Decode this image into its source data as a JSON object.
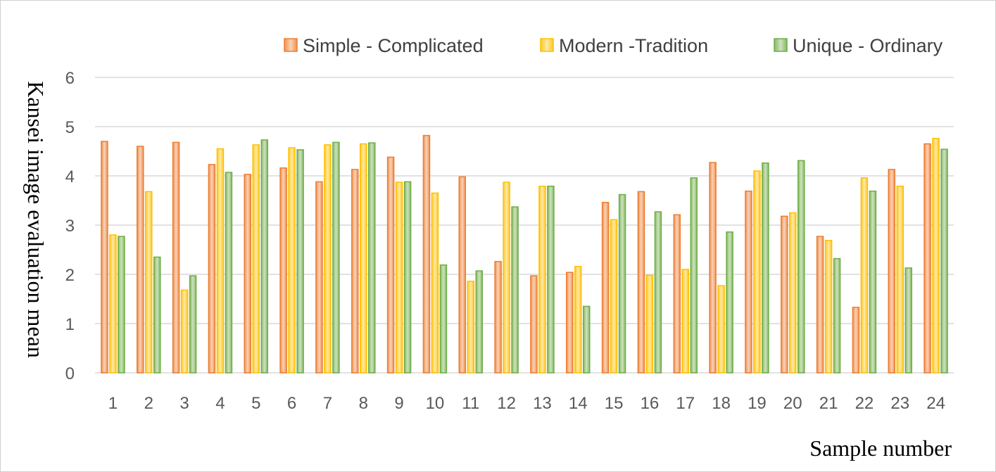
{
  "chart_data": {
    "type": "bar",
    "title": "",
    "xlabel": "Sample number",
    "ylabel": "Kansei image evaluation mean",
    "ylim": [
      0,
      6
    ],
    "yticks": [
      0,
      1,
      2,
      3,
      4,
      5,
      6
    ],
    "grid": true,
    "legend_position": "top-right",
    "categories": [
      "1",
      "2",
      "3",
      "4",
      "5",
      "6",
      "7",
      "8",
      "9",
      "10",
      "11",
      "12",
      "13",
      "14",
      "15",
      "16",
      "17",
      "18",
      "19",
      "20",
      "21",
      "22",
      "23",
      "24"
    ],
    "series": [
      {
        "name": "Simple - Complicated",
        "color": "#ED7D31",
        "values": [
          4.7,
          4.6,
          4.68,
          4.23,
          4.03,
          4.16,
          3.88,
          4.13,
          4.38,
          4.82,
          3.98,
          2.26,
          1.97,
          2.04,
          3.46,
          3.68,
          3.21,
          4.27,
          3.69,
          3.18,
          2.77,
          1.33,
          4.13,
          4.65
        ]
      },
      {
        "name": "Modern -Tradition",
        "color": "#FFC000",
        "values": [
          2.8,
          3.68,
          1.68,
          4.55,
          4.63,
          4.57,
          4.63,
          4.65,
          3.87,
          3.65,
          1.86,
          3.87,
          3.79,
          2.16,
          3.11,
          1.98,
          2.1,
          1.77,
          4.1,
          3.25,
          2.69,
          3.96,
          3.79,
          4.76
        ]
      },
      {
        "name": "Unique - Ordinary",
        "color": "#70AD47",
        "values": [
          2.77,
          2.35,
          1.97,
          4.07,
          4.73,
          4.53,
          4.68,
          4.67,
          3.88,
          2.19,
          2.07,
          3.37,
          3.79,
          1.35,
          3.62,
          3.27,
          3.96,
          2.86,
          4.26,
          4.31,
          2.32,
          3.69,
          2.13,
          4.54
        ]
      }
    ]
  }
}
